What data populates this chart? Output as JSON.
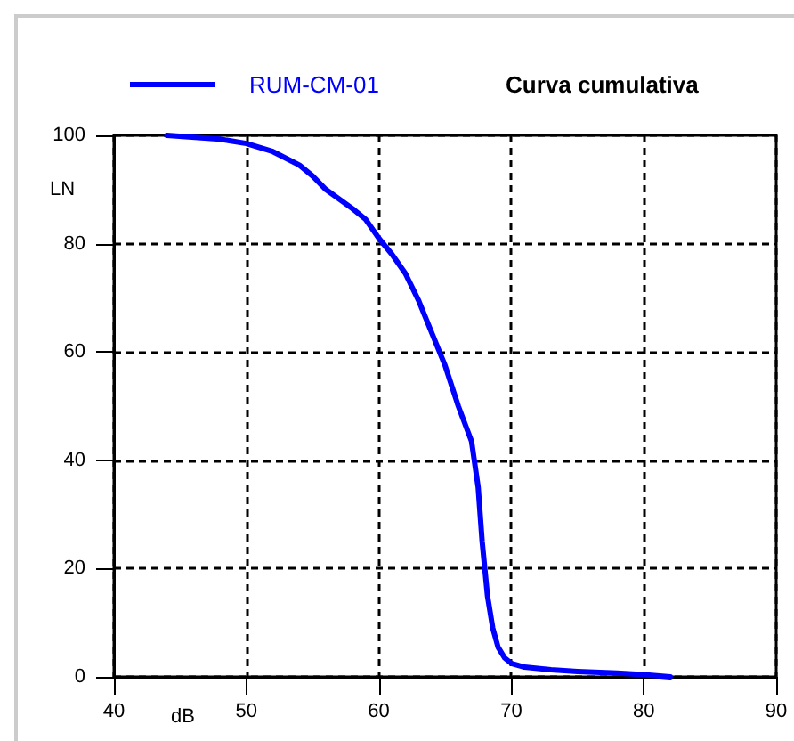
{
  "chart_data": {
    "type": "line",
    "title": "Curva cumulativa",
    "xlabel": "dB",
    "ylabel": "LN",
    "series": [
      {
        "name": "RUM-CM-01",
        "color": "#0000ff",
        "x": [
          44,
          48,
          50,
          52,
          54,
          55,
          56,
          58,
          59,
          60,
          61,
          62,
          63,
          64,
          65,
          66,
          67,
          67.5,
          67.8,
          68.2,
          68.6,
          69,
          69.5,
          70,
          71,
          73,
          75,
          78,
          80,
          82
        ],
        "values": [
          100,
          99.3,
          98.5,
          97,
          94.5,
          92.5,
          90,
          86.5,
          84.5,
          81,
          78,
          74.5,
          69.5,
          63.5,
          57.5,
          50,
          43.5,
          35,
          25,
          15,
          9,
          5.5,
          3.5,
          2.5,
          1.8,
          1.3,
          1,
          0.7,
          0.4,
          0
        ]
      }
    ],
    "xlim": [
      40,
      90
    ],
    "xticks": [
      40,
      50,
      60,
      70,
      80,
      90
    ],
    "ylim": [
      0,
      100
    ],
    "yticks": [
      0,
      20,
      40,
      60,
      80,
      100
    ],
    "grid": true,
    "legend": "top left",
    "marker": "none",
    "line_style": "solid"
  }
}
